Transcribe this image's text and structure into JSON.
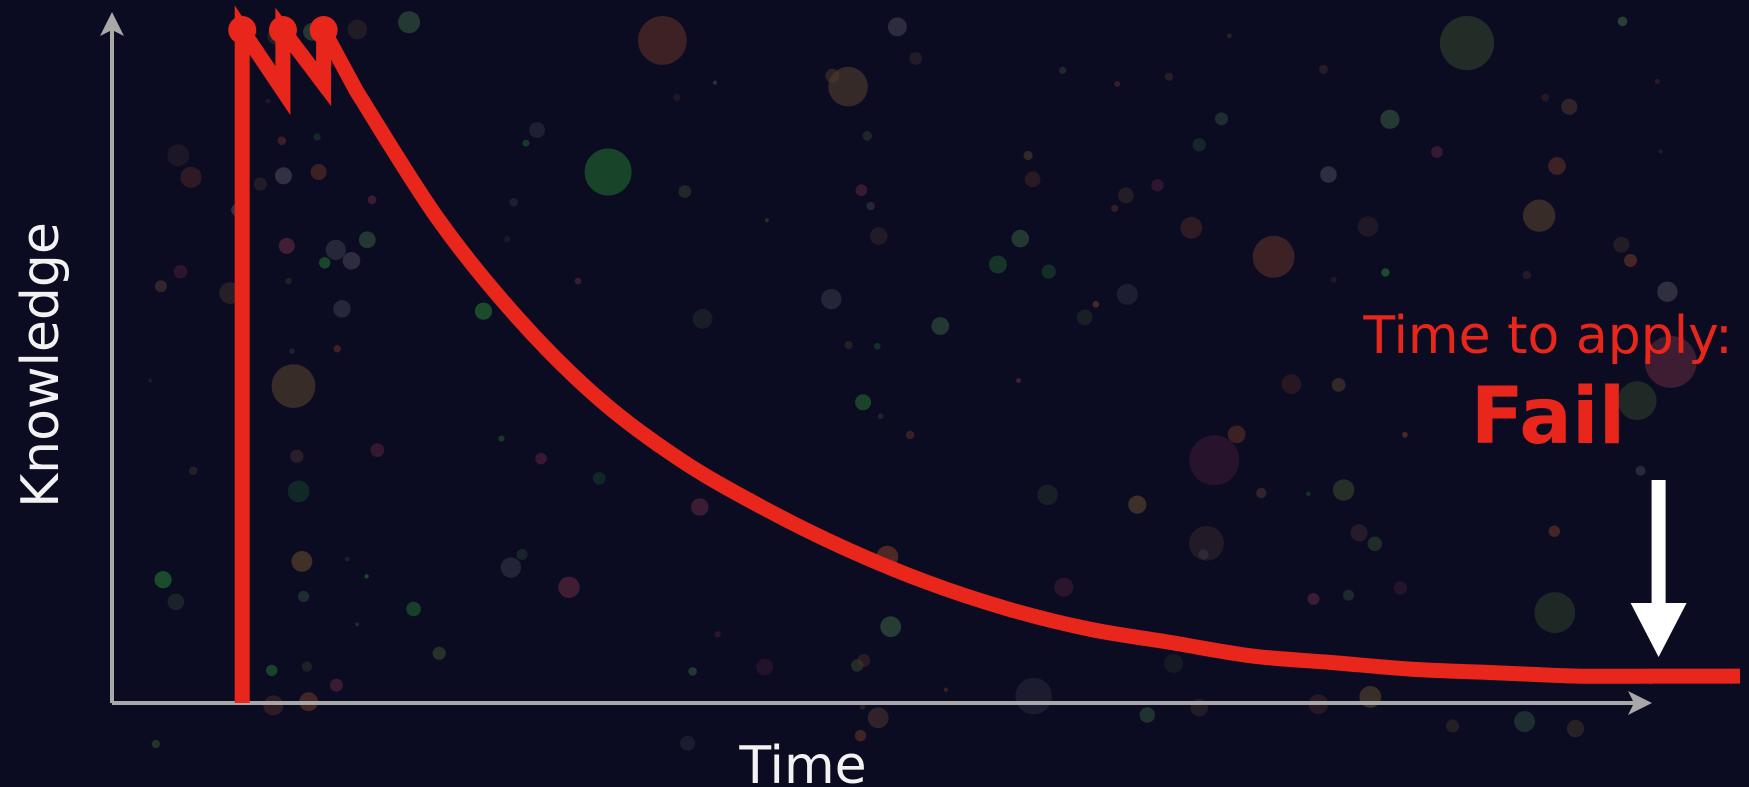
{
  "chart_data": {
    "type": "line",
    "title": "",
    "xlabel": "Time",
    "ylabel": "Knowledge",
    "xlim": [
      0,
      100
    ],
    "ylim": [
      0,
      100
    ],
    "grid": false,
    "legend": "none",
    "series": [
      {
        "color": "#e8261b",
        "points": [
          {
            "x": 8,
            "y": 0
          },
          {
            "x": 8,
            "y": 100
          },
          {
            "x": 10.5,
            "y": 91
          },
          {
            "x": 10.5,
            "y": 100
          },
          {
            "x": 13,
            "y": 92
          },
          {
            "x": 13,
            "y": 100
          },
          {
            "x": 15,
            "y": 91
          },
          {
            "x": 20,
            "y": 72
          },
          {
            "x": 25,
            "y": 57
          },
          {
            "x": 30,
            "y": 45
          },
          {
            "x": 35,
            "y": 36
          },
          {
            "x": 40,
            "y": 29
          },
          {
            "x": 45,
            "y": 23
          },
          {
            "x": 50,
            "y": 18
          },
          {
            "x": 55,
            "y": 14
          },
          {
            "x": 60,
            "y": 11
          },
          {
            "x": 65,
            "y": 9
          },
          {
            "x": 70,
            "y": 7
          },
          {
            "x": 75,
            "y": 6
          },
          {
            "x": 80,
            "y": 5
          },
          {
            "x": 85,
            "y": 4.5
          },
          {
            "x": 90,
            "y": 4
          },
          {
            "x": 95,
            "y": 4
          },
          {
            "x": 100,
            "y": 4
          }
        ]
      }
    ],
    "peaks": [
      {
        "x": 8,
        "y": 100
      },
      {
        "x": 10.5,
        "y": 100
      },
      {
        "x": 13,
        "y": 100
      }
    ],
    "annotation": {
      "line1": "Time to apply:",
      "line2": "Fail",
      "x": 95,
      "color": "#e8261b",
      "arrow_color": "#ffffff"
    }
  },
  "colors": {
    "background": "#0b0b22",
    "axis": "#a8a8a8",
    "curve": "#e8261b",
    "text": "#f2f2f2"
  }
}
